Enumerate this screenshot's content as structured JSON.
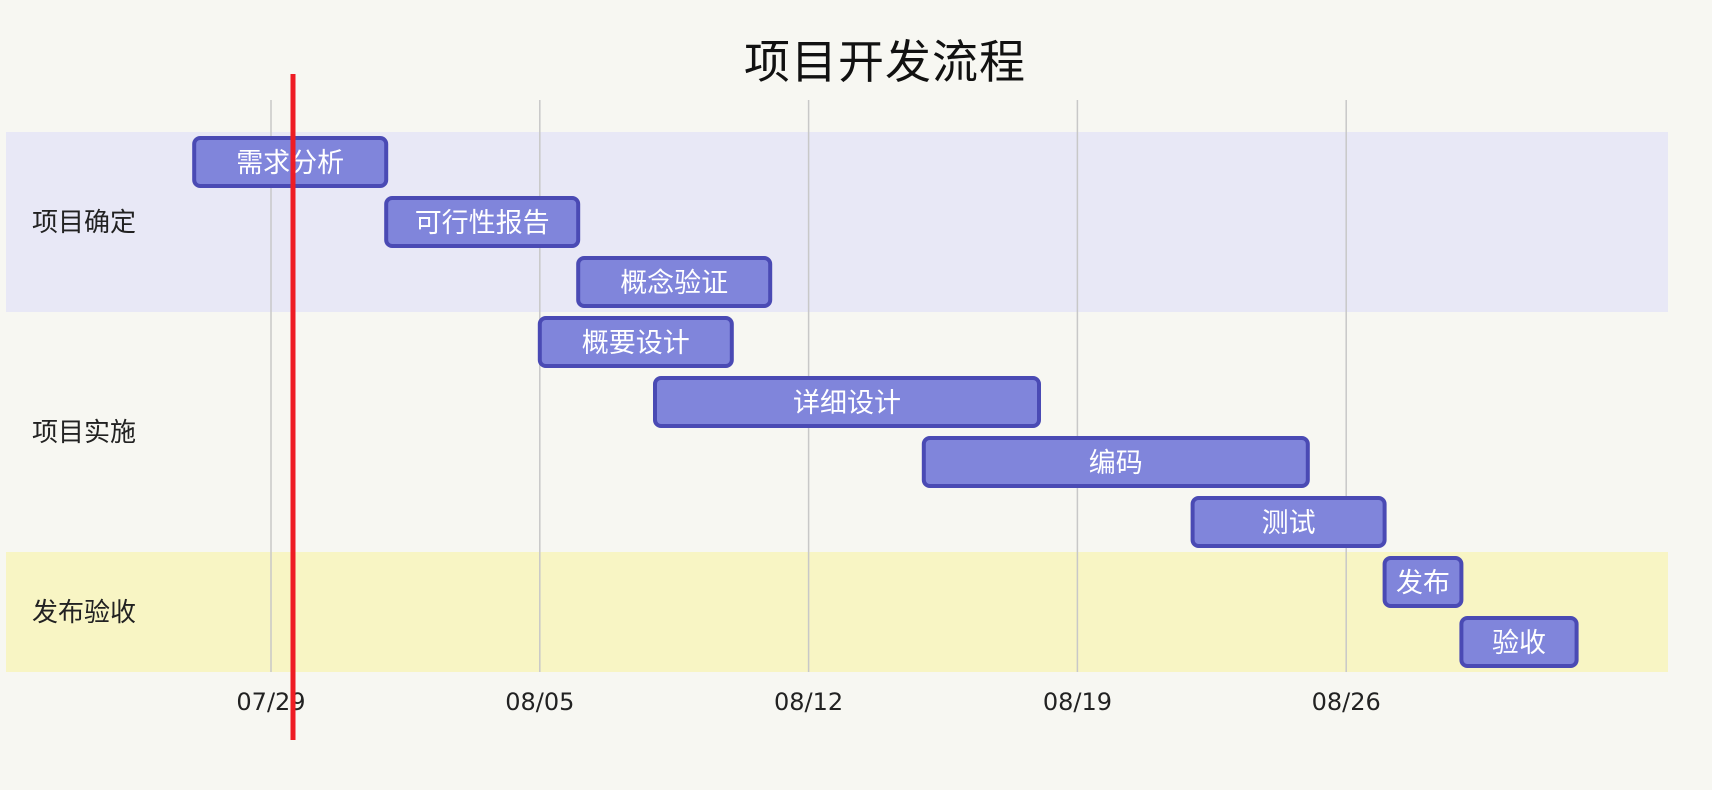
{
  "chart_data": {
    "type": "gantt",
    "title": "项目开发流程",
    "x_ticks": [
      "07/29",
      "08/05",
      "08/12",
      "08/19",
      "08/26"
    ],
    "x_range": [
      "2024-07-22",
      "2024-09-05"
    ],
    "today": "2024-07-29",
    "groups": [
      {
        "name": "项目确定",
        "color": "#e8e8f6",
        "tasks": [
          {
            "name": "需求分析",
            "start": "2024-07-27",
            "end": "2024-08-01"
          },
          {
            "name": "可行性报告",
            "start": "2024-08-01",
            "end": "2024-08-06"
          },
          {
            "name": "概念验证",
            "start": "2024-08-06",
            "end": "2024-08-11"
          }
        ]
      },
      {
        "name": "项目实施",
        "color": "#f7f7f2",
        "tasks": [
          {
            "name": "概要设计",
            "start": "2024-08-05",
            "end": "2024-08-10"
          },
          {
            "name": "详细设计",
            "start": "2024-08-08",
            "end": "2024-08-18"
          },
          {
            "name": "编码",
            "start": "2024-08-15",
            "end": "2024-08-25"
          },
          {
            "name": "测试",
            "start": "2024-08-22",
            "end": "2024-08-27"
          }
        ]
      },
      {
        "name": "发布验收",
        "color": "#f8f5c4",
        "tasks": [
          {
            "name": "发布",
            "start": "2024-08-27",
            "end": "2024-08-29"
          },
          {
            "name": "验收",
            "start": "2024-08-29",
            "end": "2024-09-01"
          }
        ]
      }
    ],
    "colors": {
      "bar_fill": "#8085db",
      "bar_stroke": "#4a4ab4",
      "bar_text": "#ffffff",
      "today_line": "#ee1c24",
      "grid": "#c8c8c8"
    }
  }
}
